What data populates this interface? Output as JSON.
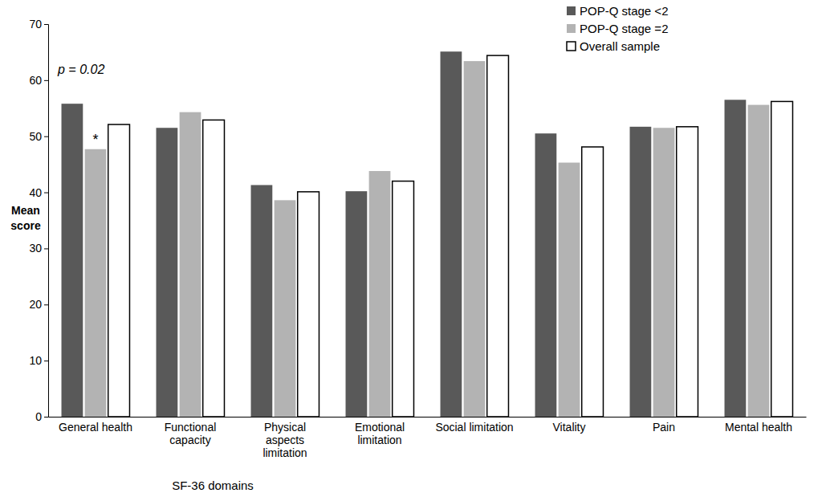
{
  "chart_data": {
    "type": "bar",
    "x_label": "SF-36 domains",
    "y_label": "Mean score",
    "categories": [
      "General health",
      "Functional capacity",
      "Physical aspects limitation",
      "Emotional limitation",
      "Social limitation",
      "Vitality",
      "Pain",
      "Mental health"
    ],
    "series": [
      {
        "name": "POP-Q stage <2",
        "color": "#595959",
        "values": [
          55.8,
          51.5,
          41.3,
          40.2,
          65.1,
          50.5,
          51.7,
          56.5
        ]
      },
      {
        "name": "POP-Q stage =2",
        "color": "#b3b3b3",
        "values": [
          47.7,
          54.3,
          38.6,
          43.8,
          63.4,
          45.3,
          51.5,
          55.6
        ]
      },
      {
        "name": "Overall sample",
        "color": "#ffffff",
        "values": [
          52.1,
          52.9,
          40.1,
          42.0,
          64.4,
          48.1,
          51.7,
          56.2
        ]
      }
    ],
    "annotations": [
      {
        "text": "p = 0.02"
      },
      {
        "text": "*",
        "category": "General health",
        "series": "POP-Q stage =2"
      }
    ],
    "ylim": [
      0,
      70
    ],
    "yticks": [
      0,
      10,
      20,
      30,
      40,
      50,
      60,
      70
    ],
    "legend": "top-right",
    "grid": false
  }
}
